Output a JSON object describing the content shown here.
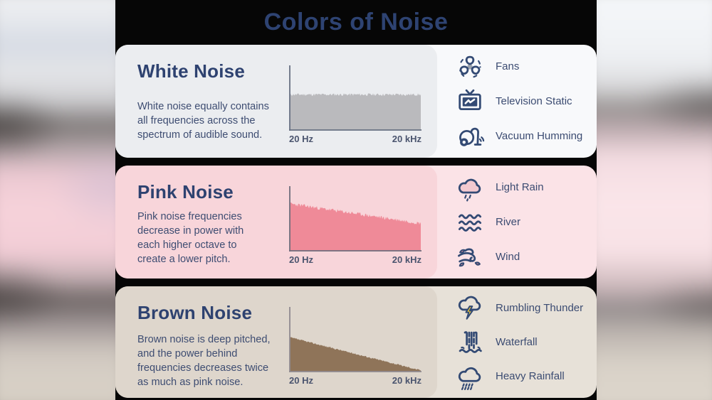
{
  "header": {
    "title": "Colors of Noise"
  },
  "palette": {
    "header_text": "#2e4372",
    "title_text": "#2e4270",
    "body_text": "#3e4d72",
    "label_text": "#3c4c72",
    "axis_label_text": "#4a546e",
    "panel_bg": "#060606"
  },
  "icon_colors": {
    "stroke": "#334a74",
    "lightning": "#f6cf3b",
    "leaf": "#ec93a2",
    "rain_cloud_fill": "#f3c9d0",
    "fan_hub": "#9aa2ad"
  },
  "sections": [
    {
      "id": "white-noise",
      "title": "White Noise",
      "description_lines": [
        "White noise equally contains",
        "all frequencies across the",
        "spectrum of audible sound."
      ],
      "card_bg": "#f8f9fb",
      "inner_bg": "#ebedf0",
      "examples": [
        {
          "icon": "fan-icon",
          "label": "Fans"
        },
        {
          "icon": "television-static-icon",
          "label": "Television Static"
        },
        {
          "icon": "vacuum-cleaner-icon",
          "label": "Vacuum Humming"
        }
      ]
    },
    {
      "id": "pink-noise",
      "title": "Pink Noise",
      "description_lines": [
        "Pink noise frequencies",
        "decrease in power with",
        "each higher octave to",
        "create a lower pitch."
      ],
      "card_bg": "#fbe3e7",
      "inner_bg": "#f8d5da",
      "examples": [
        {
          "icon": "rain-cloud-icon",
          "label": "Light Rain"
        },
        {
          "icon": "river-waves-icon",
          "label": "River"
        },
        {
          "icon": "wind-icon",
          "label": "Wind"
        }
      ]
    },
    {
      "id": "brown-noise",
      "title": "Brown Noise",
      "description_lines": [
        "Brown noise is deep pitched,",
        "and the power behind",
        "frequencies decreases twice",
        "as much as pink noise."
      ],
      "card_bg": "#e7e1d8",
      "inner_bg": "#ded6cc",
      "examples": [
        {
          "icon": "thunder-cloud-icon",
          "label": "Rumbling Thunder"
        },
        {
          "icon": "waterfall-icon",
          "label": "Waterfall"
        },
        {
          "icon": "heavy-rain-icon",
          "label": "Heavy Rainfall"
        }
      ]
    }
  ],
  "chart_data": [
    {
      "type": "area",
      "title": "White noise power spectrum",
      "x_min_label": "20 Hz",
      "x_max_label": "20 kHz",
      "x_scale": "audible frequency range",
      "y_axis": "relative power (unlabeled)",
      "start_level": 0.58,
      "end_level": 0.58,
      "jitter": 0.022,
      "seed": 11,
      "fill_color": "#bababd",
      "axis_color": "#687083",
      "description": "flat - equal power at all audible frequencies"
    },
    {
      "type": "area",
      "title": "Pink noise power spectrum",
      "x_min_label": "20 Hz",
      "x_max_label": "20 kHz",
      "x_scale": "audible frequency range",
      "y_axis": "relative power (unlabeled)",
      "start_level": 0.77,
      "end_level": 0.45,
      "jitter": 0.03,
      "seed": 23,
      "fill_color": "#ef8a98",
      "axis_color": "#6f6d7c",
      "description": "gentle decline - power decreases each higher octave"
    },
    {
      "type": "area",
      "title": "Brown noise power spectrum",
      "x_min_label": "20 Hz",
      "x_max_label": "20 kHz",
      "x_scale": "audible frequency range",
      "y_axis": "relative power (unlabeled)",
      "start_level": 0.56,
      "end_level": 0.02,
      "jitter": 0.012,
      "seed": 37,
      "fill_color": "#8f7459",
      "axis_color": "#908b90",
      "description": "steep decline to near zero - power falls twice as fast as pink noise"
    }
  ]
}
